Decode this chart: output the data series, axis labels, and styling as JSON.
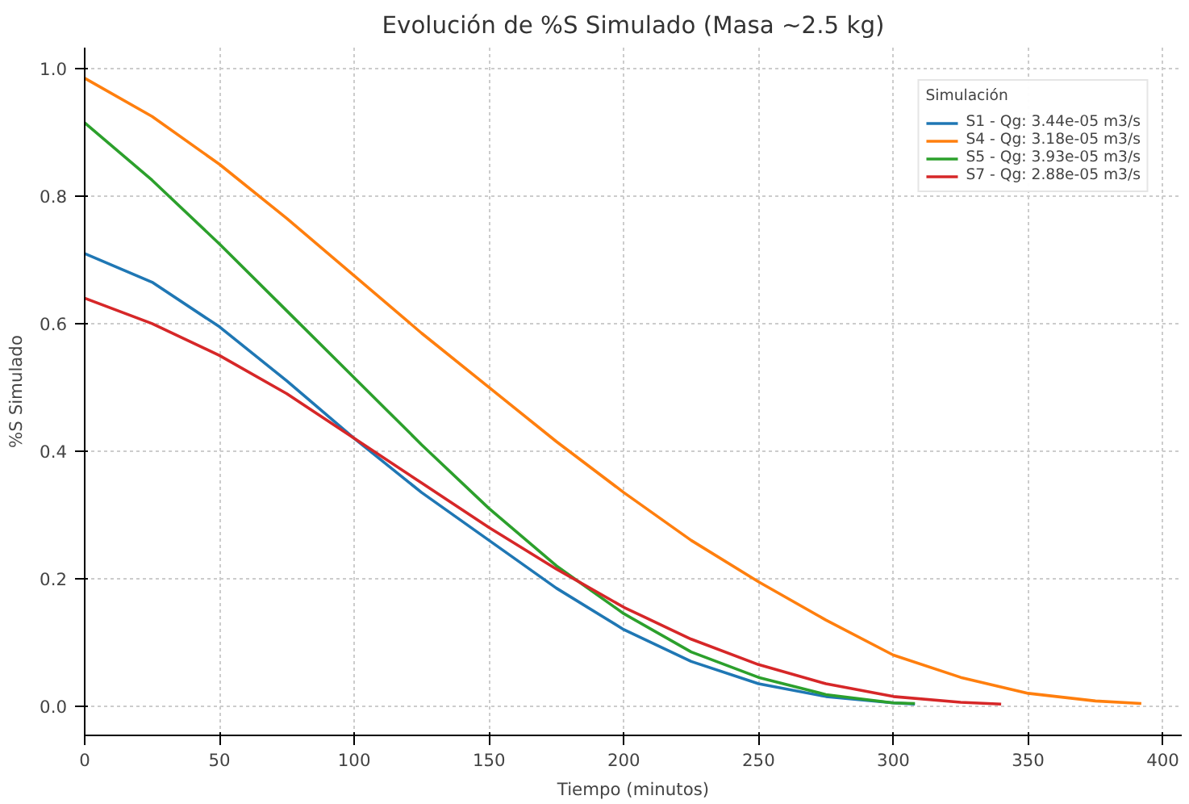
{
  "chart_data": {
    "type": "line",
    "title": "Evolución de %S Simulado (Masa ~2.5 kg)",
    "xlabel": "Tiempo (minutos)",
    "ylabel": "%S Simulado",
    "legend_title": "Simulación",
    "xlim": [
      0,
      407
    ],
    "ylim": [
      -0.046,
      1.033
    ],
    "xticks": [
      0,
      50,
      100,
      150,
      200,
      250,
      300,
      350,
      400
    ],
    "yticks": [
      {
        "value": 0,
        "label": "0.0"
      },
      {
        "value": 0.2,
        "label": "0.2"
      },
      {
        "value": 0.4,
        "label": "0.4"
      },
      {
        "value": 0.6,
        "label": "0.6"
      },
      {
        "value": 0.8,
        "label": "0.8"
      },
      {
        "value": 1.0,
        "label": "1.0"
      }
    ],
    "grid": true,
    "legend": "top right",
    "line_style": "solid",
    "series": [
      {
        "name": "S1 - Qg: 3.44e-05 m3/s",
        "color": "#1f77b4",
        "x": [
          0,
          25,
          50,
          75,
          100,
          125,
          150,
          175,
          200,
          225,
          250,
          275,
          300,
          308
        ],
        "values": [
          0.71,
          0.665,
          0.595,
          0.51,
          0.42,
          0.335,
          0.26,
          0.185,
          0.12,
          0.07,
          0.035,
          0.015,
          0.005,
          0.003
        ]
      },
      {
        "name": "S4 - Qg: 3.18e-05 m3/s",
        "color": "#ff7f0e",
        "x": [
          0,
          25,
          50,
          75,
          100,
          125,
          150,
          175,
          200,
          225,
          250,
          275,
          300,
          325,
          350,
          375,
          392
        ],
        "values": [
          0.985,
          0.925,
          0.85,
          0.765,
          0.675,
          0.585,
          0.5,
          0.415,
          0.335,
          0.26,
          0.195,
          0.135,
          0.08,
          0.045,
          0.02,
          0.008,
          0.004
        ]
      },
      {
        "name": "S5 - Qg: 3.93e-05 m3/s",
        "color": "#2ca02c",
        "x": [
          0,
          25,
          50,
          75,
          100,
          125,
          150,
          175,
          200,
          225,
          250,
          275,
          300,
          308
        ],
        "values": [
          0.915,
          0.825,
          0.725,
          0.62,
          0.515,
          0.41,
          0.31,
          0.22,
          0.145,
          0.085,
          0.045,
          0.018,
          0.005,
          0.004
        ]
      },
      {
        "name": "S7 - Qg: 2.88e-05 m3/s",
        "color": "#d62728",
        "x": [
          0,
          25,
          50,
          75,
          100,
          125,
          150,
          175,
          200,
          225,
          250,
          275,
          300,
          325,
          340
        ],
        "values": [
          0.64,
          0.6,
          0.55,
          0.49,
          0.42,
          0.35,
          0.28,
          0.215,
          0.155,
          0.105,
          0.065,
          0.035,
          0.015,
          0.006,
          0.003
        ]
      }
    ]
  }
}
